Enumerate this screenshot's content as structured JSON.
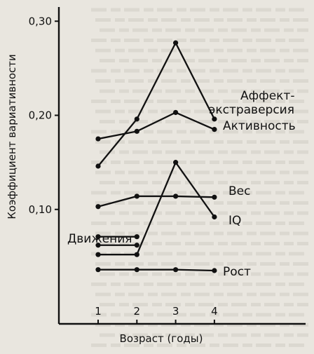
{
  "chart_data": {
    "type": "line",
    "title": "",
    "xlabel": "Возраст (годы)",
    "ylabel": "Коэффициент вариативности",
    "x_ticks": [
      "1",
      "2",
      "3",
      "4"
    ],
    "y_ticks": [
      "0,10",
      "0,20",
      "0,30"
    ],
    "xlim": [
      0.6,
      4.6
    ],
    "ylim": [
      0.0,
      0.31
    ],
    "grid": false,
    "legend": "none",
    "series": [
      {
        "name": "Аффект-экстраверсия",
        "x": [
          1,
          2,
          3,
          4
        ],
        "y": [
          0.146,
          0.196,
          0.277,
          0.196
        ]
      },
      {
        "name": "Активность",
        "x": [
          1,
          2,
          3,
          4
        ],
        "y": [
          0.175,
          0.183,
          0.203,
          0.185
        ]
      },
      {
        "name": "Вес",
        "x": [
          1,
          2,
          3,
          4
        ],
        "y": [
          0.103,
          0.114,
          0.114,
          0.113
        ]
      },
      {
        "name": "IQ",
        "x": [
          1,
          2,
          3,
          4
        ],
        "y": [
          0.052,
          0.052,
          0.15,
          0.092
        ]
      },
      {
        "name": "Рост",
        "x": [
          1,
          2,
          3,
          4
        ],
        "y": [
          0.036,
          0.036,
          0.036,
          0.035
        ]
      }
    ],
    "extra_segments": [
      {
        "x": [
          1,
          2
        ],
        "y": [
          0.071,
          0.071
        ]
      },
      {
        "x": [
          1,
          2
        ],
        "y": [
          0.062,
          0.062
        ]
      }
    ],
    "annotations": [
      "Движения"
    ]
  }
}
